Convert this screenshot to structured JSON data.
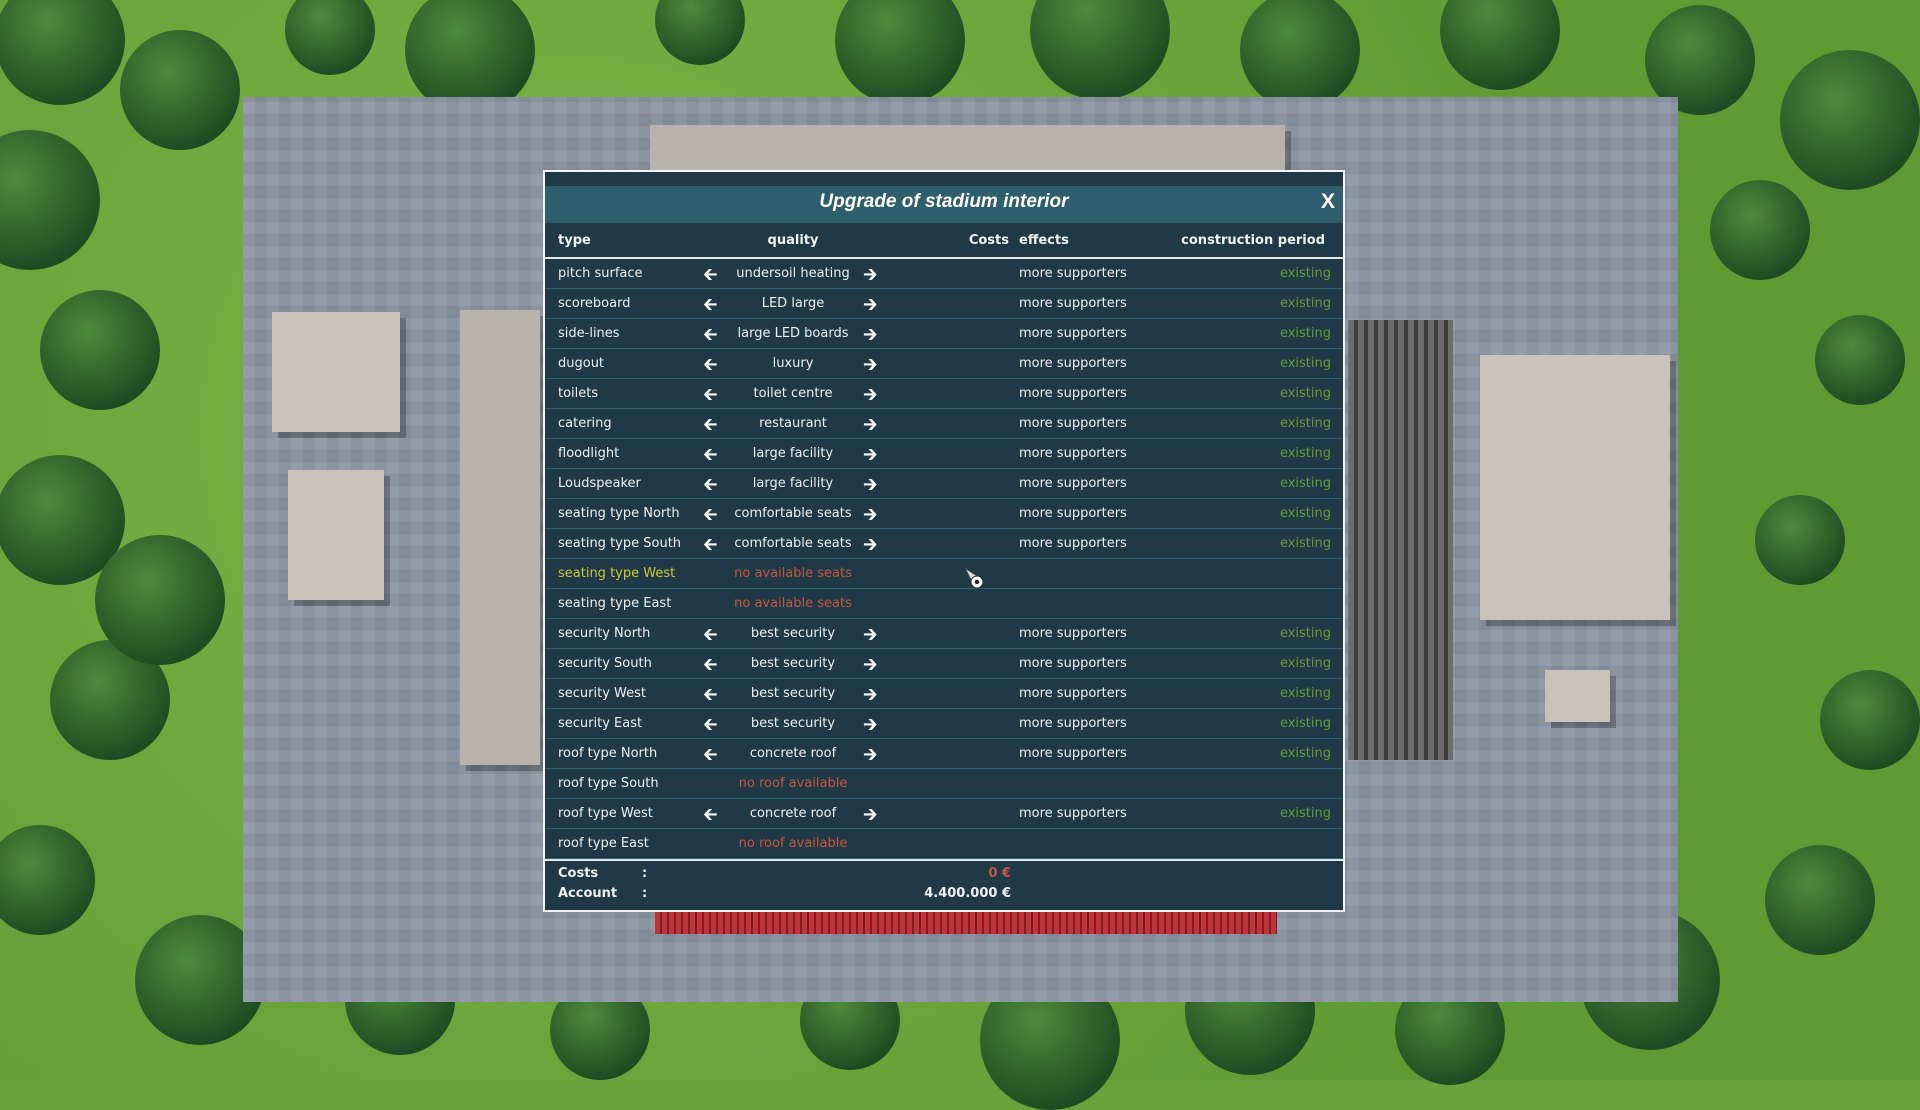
{
  "dialog": {
    "title": "Upgrade of stadium interior",
    "close_label": "X",
    "headers": {
      "type": "type",
      "quality": "quality",
      "costs": "Costs",
      "effects": "effects",
      "period": "construction period"
    },
    "rows": [
      {
        "type": "pitch surface",
        "quality": "undersoil heating",
        "arrows": true,
        "effects": "more supporters",
        "period": "existing"
      },
      {
        "type": "scoreboard",
        "quality": "LED large",
        "arrows": true,
        "effects": "more supporters",
        "period": "existing"
      },
      {
        "type": "side-lines",
        "quality": "large LED boards",
        "arrows": true,
        "effects": "more supporters",
        "period": "existing"
      },
      {
        "type": "dugout",
        "quality": "luxury",
        "arrows": true,
        "effects": "more supporters",
        "period": "existing"
      },
      {
        "type": "toilets",
        "quality": "toilet centre",
        "arrows": true,
        "effects": "more supporters",
        "period": "existing"
      },
      {
        "type": "catering",
        "quality": "restaurant",
        "arrows": true,
        "effects": "more supporters",
        "period": "existing"
      },
      {
        "type": "floodlight",
        "quality": "large facility",
        "arrows": true,
        "effects": "more supporters",
        "period": "existing"
      },
      {
        "type": "Loudspeaker",
        "quality": "large facility",
        "arrows": true,
        "effects": "more supporters",
        "period": "existing"
      },
      {
        "type": "seating type North",
        "quality": "comfortable seats",
        "arrows": true,
        "effects": "more supporters",
        "period": "existing"
      },
      {
        "type": "seating type South",
        "quality": "comfortable seats",
        "arrows": true,
        "effects": "more supporters",
        "period": "existing"
      },
      {
        "type": "seating type West",
        "quality": "no available seats",
        "arrows": false,
        "unavailable": true,
        "highlight": true,
        "effects": "",
        "period": ""
      },
      {
        "type": "seating type East",
        "quality": "no available seats",
        "arrows": false,
        "unavailable": true,
        "effects": "",
        "period": ""
      },
      {
        "type": "security North",
        "quality": "best security",
        "arrows": true,
        "effects": "more supporters",
        "period": "existing"
      },
      {
        "type": "security South",
        "quality": "best security",
        "arrows": true,
        "effects": "more supporters",
        "period": "existing"
      },
      {
        "type": "security West",
        "quality": "best security",
        "arrows": true,
        "effects": "more supporters",
        "period": "existing"
      },
      {
        "type": "security East",
        "quality": "best security",
        "arrows": true,
        "effects": "more supporters",
        "period": "existing"
      },
      {
        "type": "roof type North",
        "quality": "concrete roof",
        "arrows": true,
        "effects": "more supporters",
        "period": "existing"
      },
      {
        "type": "roof type South",
        "quality": "no roof available",
        "arrows": false,
        "unavailable": true,
        "effects": "",
        "period": ""
      },
      {
        "type": "roof type West",
        "quality": "concrete roof",
        "arrows": true,
        "effects": "more supporters",
        "period": "existing"
      },
      {
        "type": "roof type East",
        "quality": "no roof available",
        "arrows": false,
        "unavailable": true,
        "effects": "",
        "period": ""
      }
    ],
    "footer": {
      "costs_label": "Costs",
      "costs_value": "0 €",
      "account_label": "Account",
      "account_value": "4.400.000 €",
      "separator": ":"
    },
    "icons": {
      "left": "arrow-left-icon",
      "right": "arrow-right-icon",
      "cursor": "football-cursor-icon"
    },
    "colors": {
      "panel": "#1f3a46",
      "titlebar": "#2f5f6c",
      "existing": "#6a9a3a",
      "unavailable": "#c8553f",
      "highlight": "#c8c83a"
    }
  }
}
